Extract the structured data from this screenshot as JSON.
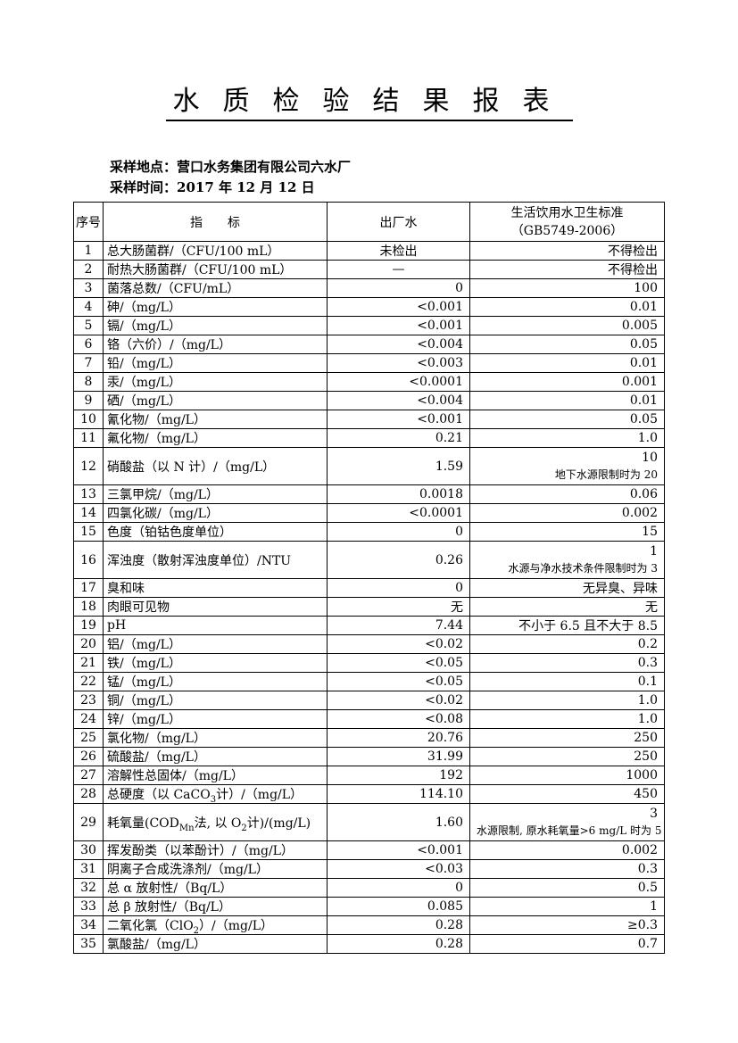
{
  "page": {
    "title": "水质检验结果报表",
    "sampling_location_label": "采样地点：",
    "sampling_location": "营口水务集团有限公司六水厂",
    "sampling_time_label": "采样时间：",
    "sampling_time": "2017 年 12 月 12 日"
  },
  "table": {
    "headers": {
      "no": "序号",
      "indicator": "指　　标",
      "value": "出厂水",
      "standard_line1": "生活饮用水卫生标准",
      "standard_line2": "（GB5749-2006）"
    },
    "rows": [
      {
        "no": "1",
        "indicator": "总大肠菌群/（CFU/100 mL）",
        "value": "未检出",
        "value_align": "center",
        "standard": "不得检出"
      },
      {
        "no": "2",
        "indicator": "耐热大肠菌群/（CFU/100 mL）",
        "value": "—",
        "value_align": "center",
        "standard": "不得检出"
      },
      {
        "no": "3",
        "indicator": "菌落总数/（CFU/mL）",
        "value": "0",
        "standard": "100"
      },
      {
        "no": "4",
        "indicator": "砷/（mg/L）",
        "value": "<0.001",
        "standard": "0.01"
      },
      {
        "no": "5",
        "indicator": "镉/（mg/L）",
        "value": "<0.001",
        "standard": "0.005"
      },
      {
        "no": "6",
        "indicator": "铬（六价）/（mg/L）",
        "value": "<0.004",
        "standard": "0.05"
      },
      {
        "no": "7",
        "indicator": "铅/（mg/L）",
        "value": "<0.003",
        "standard": "0.01"
      },
      {
        "no": "8",
        "indicator": "汞/（mg/L）",
        "value": "<0.0001",
        "standard": "0.001"
      },
      {
        "no": "9",
        "indicator": "硒/（mg/L）",
        "value": "<0.004",
        "standard": "0.01"
      },
      {
        "no": "10",
        "indicator": "氰化物/（mg/L）",
        "value": "<0.001",
        "standard": "0.05"
      },
      {
        "no": "11",
        "indicator": "氟化物/（mg/L）",
        "value": "0.21",
        "standard": "1.0"
      },
      {
        "no": "12",
        "indicator": "硝酸盐（以 N 计）/（mg/L）",
        "value": "1.59",
        "standard": "10",
        "standard_note": "地下水源限制时为 20"
      },
      {
        "no": "13",
        "indicator": "三氯甲烷/（mg/L）",
        "value": "0.0018",
        "standard": "0.06"
      },
      {
        "no": "14",
        "indicator": "四氯化碳/（mg/L）",
        "value": "<0.0001",
        "standard": "0.002"
      },
      {
        "no": "15",
        "indicator": "色度（铂钴色度单位）",
        "value": "0",
        "standard": "15"
      },
      {
        "no": "16",
        "indicator": "浑浊度（散射浑浊度单位）/NTU",
        "value": "0.26",
        "standard": "1",
        "standard_note": "水源与净水技术条件限制时为 3"
      },
      {
        "no": "17",
        "indicator": "臭和味",
        "value": "0",
        "standard": "无异臭、异味"
      },
      {
        "no": "18",
        "indicator": "肉眼可见物",
        "value": "无",
        "standard": "无"
      },
      {
        "no": "19",
        "indicator": "pH",
        "value": "7.44",
        "standard": "不小于 6.5 且不大于 8.5"
      },
      {
        "no": "20",
        "indicator": "铝/（mg/L）",
        "value": "<0.02",
        "standard": "0.2"
      },
      {
        "no": "21",
        "indicator": "铁/（mg/L）",
        "value": "<0.05",
        "standard": "0.3"
      },
      {
        "no": "22",
        "indicator": "锰/（mg/L）",
        "value": "<0.05",
        "standard": "0.1"
      },
      {
        "no": "23",
        "indicator": "铜/（mg/L）",
        "value": "<0.02",
        "standard": "1.0"
      },
      {
        "no": "24",
        "indicator": "锌/（mg/L）",
        "value": "<0.08",
        "standard": "1.0"
      },
      {
        "no": "25",
        "indicator": "氯化物/（mg/L）",
        "value": "20.76",
        "standard": "250"
      },
      {
        "no": "26",
        "indicator": "硫酸盐/（mg/L）",
        "value": "31.99",
        "standard": "250"
      },
      {
        "no": "27",
        "indicator": "溶解性总固体/（mg/L）",
        "value": "192",
        "standard": "1000"
      },
      {
        "no": "28",
        "indicator": "总硬度（以 CaCO_{3}计）/（mg/L）",
        "value": "114.10",
        "standard": "450"
      },
      {
        "no": "29",
        "indicator": "耗氧量(COD_{Mn}法, 以 O_{2}计)/(mg/L)",
        "value": "1.60",
        "standard": "3",
        "standard_note": "水源限制, 原水耗氧量>6 mg/L 时为 5"
      },
      {
        "no": "30",
        "indicator": "挥发酚类（以苯酚计）/（mg/L）",
        "value": "<0.001",
        "standard": "0.002"
      },
      {
        "no": "31",
        "indicator": "阴离子合成洗涤剂/（mg/L）",
        "value": "<0.03",
        "standard": "0.3"
      },
      {
        "no": "32",
        "indicator": "总 α 放射性/（Bq/L）",
        "value": "0",
        "standard": "0.5"
      },
      {
        "no": "33",
        "indicator": "总 β 放射性/（Bq/L）",
        "value": "0.085",
        "standard": "1"
      },
      {
        "no": "34",
        "indicator": "二氧化氯（ClO_{2}）/（mg/L）",
        "value": "0.28",
        "standard": "≥0.3"
      },
      {
        "no": "35",
        "indicator": "氯酸盐/（mg/L）",
        "value": "0.28",
        "standard": "0.7"
      }
    ]
  }
}
